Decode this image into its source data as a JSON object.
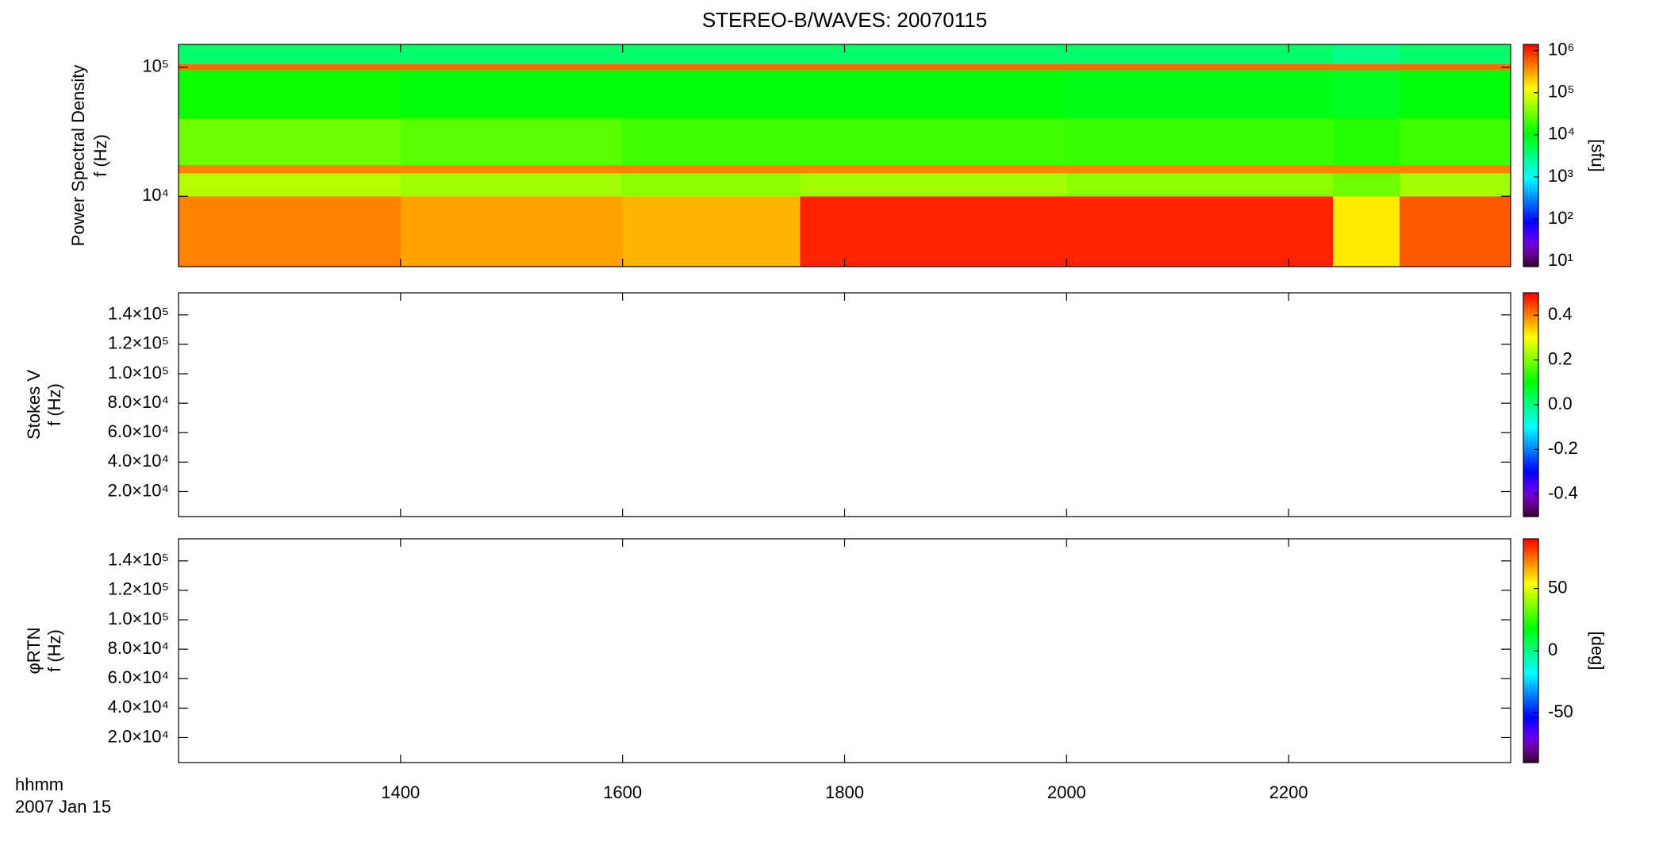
{
  "chart_data": [
    {
      "type": "heatmap",
      "title": "STEREO-B/WAVES: 20070115",
      "ylabel_lines": [
        "Power Spectral Density",
        "f (Hz)"
      ],
      "xlim": [
        12,
        24
      ],
      "xticks": [
        14,
        16,
        18,
        20,
        22
      ],
      "ylim": [
        2850,
        150000
      ],
      "ylog": true,
      "yticks": [
        {
          "value": 10000,
          "label": "10⁴"
        },
        {
          "value": 100000,
          "label": "10⁵"
        }
      ],
      "x_edges": [
        12,
        14,
        16,
        17.6,
        20,
        22.4,
        23,
        24
      ],
      "y_edges": [
        2850,
        10000,
        15000,
        17500,
        40000,
        95000,
        105000,
        150000
      ],
      "z": [
        [
          400000,
          300000,
          250000,
          1000000,
          1000000,
          150000,
          600000
        ],
        [
          60000,
          50000,
          40000,
          50000,
          40000,
          30000,
          50000
        ],
        [
          400000,
          400000,
          400000,
          400000,
          400000,
          400000,
          400000
        ],
        [
          30000,
          25000,
          20000,
          20000,
          18000,
          15000,
          20000
        ],
        [
          12000,
          10000,
          10000,
          10000,
          9000,
          8000,
          10000
        ],
        [
          500000,
          500000,
          500000,
          500000,
          500000,
          500000,
          500000
        ],
        [
          4000,
          4000,
          4000,
          4000,
          4000,
          3000,
          4000
        ]
      ],
      "colormap": "rainbow",
      "colorbar": {
        "zlim": [
          7.4,
          1400000
        ],
        "log": true,
        "label": "[sfu]",
        "ticks": [
          {
            "value": 10,
            "label": "10¹"
          },
          {
            "value": 100,
            "label": "10²"
          },
          {
            "value": 1000,
            "label": "10³"
          },
          {
            "value": 10000,
            "label": "10⁴"
          },
          {
            "value": 100000,
            "label": "10⁵"
          },
          {
            "value": 1000000,
            "label": "10⁶"
          }
        ]
      }
    },
    {
      "type": "heatmap",
      "ylabel_lines": [
        "Stokes V",
        "f (Hz)"
      ],
      "xlim": [
        12,
        24
      ],
      "xticks": [
        14,
        16,
        18,
        20,
        22
      ],
      "ylim": [
        3000,
        155000
      ],
      "ylog": false,
      "yticks": [
        {
          "value": 20000,
          "label": "2.0×10⁴"
        },
        {
          "value": 40000,
          "label": "4.0×10⁴"
        },
        {
          "value": 60000,
          "label": "6.0×10⁴"
        },
        {
          "value": 80000,
          "label": "8.0×10⁴"
        },
        {
          "value": 100000,
          "label": "1.0×10⁵"
        },
        {
          "value": 120000,
          "label": "1.2×10⁵"
        },
        {
          "value": 140000,
          "label": "1.4×10⁵"
        }
      ],
      "colormap": "rainbow",
      "colorbar": {
        "zlim": [
          -0.5,
          0.5
        ],
        "log": false,
        "ticks": [
          -0.4,
          -0.2,
          {
            "value": 0,
            "label": "0.0"
          },
          0.2,
          0.4
        ]
      }
    },
    {
      "type": "heatmap",
      "ylabel_lines": [
        "φRTN",
        "f (Hz)"
      ],
      "xlim": [
        12,
        24
      ],
      "xticks": [
        {
          "value": 14,
          "label": "1400"
        },
        {
          "value": 16,
          "label": "1600"
        },
        {
          "value": 18,
          "label": "1800"
        },
        {
          "value": 20,
          "label": "2000"
        },
        {
          "value": 22,
          "label": "2200"
        }
      ],
      "xlabel": "hhmm",
      "date_label": "2007 Jan 15",
      "ylim": [
        3000,
        155000
      ],
      "ylog": false,
      "yticks": [
        {
          "value": 20000,
          "label": "2.0×10⁴"
        },
        {
          "value": 40000,
          "label": "4.0×10⁴"
        },
        {
          "value": 60000,
          "label": "6.0×10⁴"
        },
        {
          "value": 80000,
          "label": "8.0×10⁴"
        },
        {
          "value": 100000,
          "label": "1.0×10⁵"
        },
        {
          "value": 120000,
          "label": "1.2×10⁵"
        },
        {
          "value": 140000,
          "label": "1.4×10⁵"
        }
      ],
      "colormap": "rainbow",
      "colorbar": {
        "zlim": [
          -90,
          90
        ],
        "log": false,
        "label": "[deg]",
        "ticks": [
          -50,
          0,
          50
        ]
      }
    }
  ]
}
